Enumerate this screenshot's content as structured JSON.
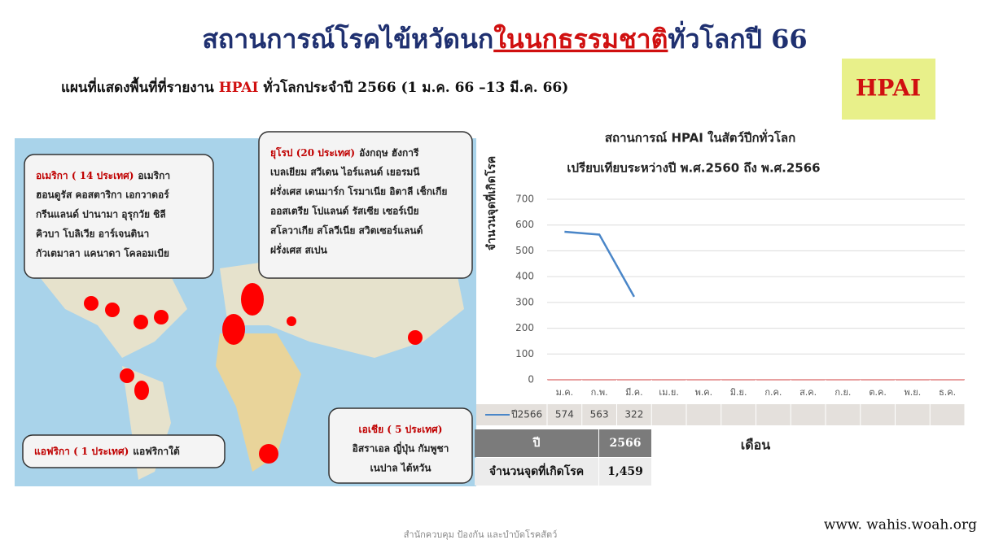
{
  "header": {
    "title": [
      "สถานการณ์โรคไข้หวัดนก",
      "ในนกธรรมชาติ",
      "ทั่วโลกปี 66"
    ],
    "subtitle": [
      "แผนที่แสดงพื้นที่ที่รายงาน ",
      "HPAI",
      " ทั่วโลกประจำปี 2566 (1 ม.ค. 66 –13 มี.ค. 66)"
    ],
    "badge": "HPAI"
  },
  "callouts": [
    {
      "heading": "อเมริกา ( 14 ประเทศ)",
      "lines": [
        "อเมริกา",
        "ฮอนดูรัส คอสตาริกา เอกวาดอร์",
        "กรีนแลนด์ ปานามา อุรุกวัย ชิลี",
        "คิวบา โบลิเวีย อาร์เจนตินา",
        "กัวเตมาลา แคนาดา โคลอมเบีย"
      ]
    },
    {
      "heading": "ยุโรป (20 ประเทศ)",
      "lines": [
        "อังกฤษ ฮังการี",
        "เบลเยียม สวีเดน ไอร์แลนด์ เยอรมนี",
        "ฝรั่งเศส เดนมาร์ก โรมาเนีย อิตาลี เช็กเกีย",
        "ออสเตรีย โปแลนด์ รัสเซีย เซอร์เบีย",
        "สโลวาเกีย สโลวีเนีย สวิตเซอร์แลนด์",
        "ฝรั่งเศส สเปน"
      ]
    },
    {
      "heading": "แอฟริกา ( 1 ประเทศ)",
      "lines": [
        "แอฟริกาใต้"
      ]
    },
    {
      "heading": "เอเชีย ( 5 ประเทศ)",
      "lines": [
        "อิสราเอล ญี่ปุ่น กัมพูชา",
        "เนปาล ไต้หวัน"
      ]
    }
  ],
  "chart_data": {
    "type": "line",
    "title": "สถานการณ์ HPAI ในสัตว์ปีกทั่วโลก",
    "subtitle": "เปรียบเทียบระหว่างปี พ.ศ.2560 ถึง พ.ศ.2566",
    "y_label": "จำนวนจุดที่เกิดโรค",
    "x_label": "เดือน",
    "categories": [
      "ม.ค.",
      "ก.พ.",
      "มี.ค.",
      "เม.ย.",
      "พ.ค.",
      "มิ.ย.",
      "ก.ค.",
      "ส.ค.",
      "ก.ย.",
      "ต.ค.",
      "พ.ย.",
      "ธ.ค."
    ],
    "series": [
      {
        "name": "ปี2566",
        "color": "#4a86c8",
        "values": [
          574,
          563,
          322,
          null,
          null,
          null,
          null,
          null,
          null,
          null,
          null,
          null
        ]
      }
    ],
    "ylim": [
      0,
      700
    ],
    "yticks": [
      0,
      100,
      200,
      300,
      400,
      500,
      600,
      700
    ],
    "grid": true
  },
  "summary_table": {
    "header": [
      "ปี",
      "2566"
    ],
    "row": [
      "จำนวนจุดที่เกิดโรค",
      "1,459"
    ]
  },
  "footer": {
    "source": "www. wahis.woah.org",
    "office": "สำนักควบคุม ป้องกัน และบำบัดโรคสัตว์"
  }
}
